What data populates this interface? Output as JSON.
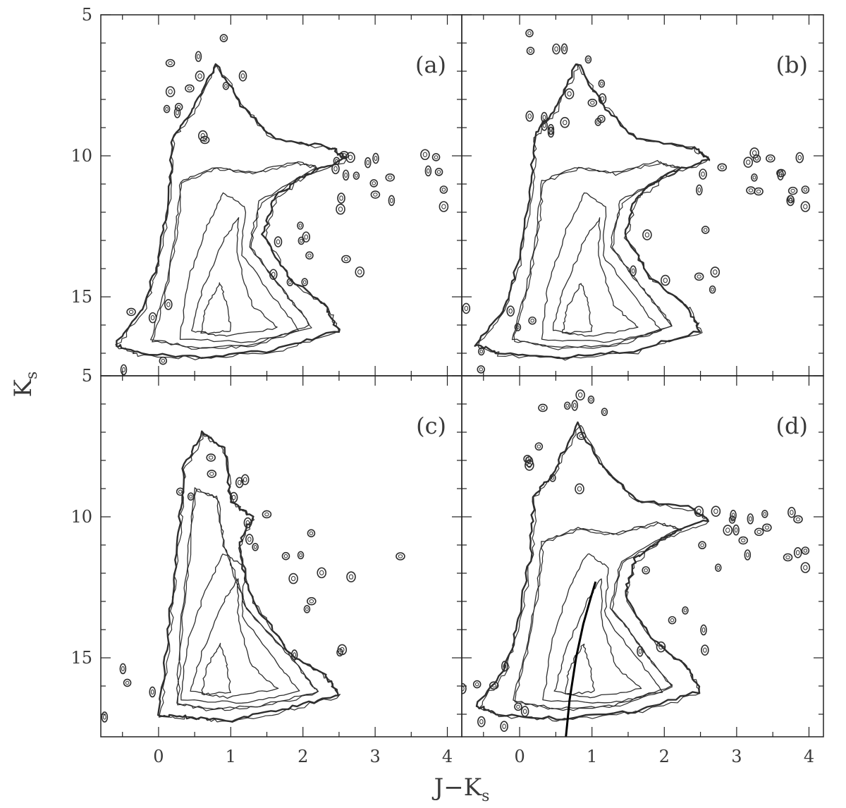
{
  "figure": {
    "xlabel_main": "J−K",
    "xlabel_sub": "s",
    "ylabel_main": "K",
    "ylabel_sub": "s"
  },
  "chart_data": [
    {
      "type": "contour",
      "panel_label": "(a)",
      "xlabel": "J−Ks",
      "ylabel": "Ks",
      "xlim": [
        -0.8,
        4.2
      ],
      "ylim": [
        17.8,
        5
      ],
      "y_inverted": true,
      "x_ticks": [
        0,
        1,
        2,
        3,
        4
      ],
      "y_ticks": [
        5,
        10,
        15
      ],
      "x_tick_labels_shown": false,
      "y_tick_labels": [
        "5",
        "10",
        "15"
      ],
      "features": {
        "density_peak": {
          "x": 0.75,
          "y": 16.0
        },
        "red_clump_branch": {
          "x_range": [
            0.2,
            2.6
          ],
          "y": 10.0
        },
        "giant_branch": [
          [
            0.75,
            16.3
          ],
          [
            0.9,
            14.2
          ],
          [
            1.05,
            12.3
          ],
          [
            1.2,
            11.0
          ]
        ],
        "faint_limit": 17.0
      }
    },
    {
      "type": "contour",
      "panel_label": "(b)",
      "xlabel": "J−Ks",
      "ylabel": "Ks",
      "xlim": [
        -0.8,
        4.2
      ],
      "ylim": [
        17.8,
        5
      ],
      "y_inverted": true,
      "x_ticks": [
        0,
        1,
        2,
        3,
        4
      ],
      "y_ticks": [
        5,
        10,
        15
      ],
      "x_tick_labels_shown": false,
      "y_tick_labels_shown": false,
      "features": {
        "density_peak": {
          "x": 0.75,
          "y": 16.0
        },
        "red_clump_branch": {
          "x_range": [
            0.2,
            2.6
          ],
          "y": 10.0
        },
        "giant_branch": [
          [
            0.75,
            16.3
          ],
          [
            0.9,
            14.2
          ],
          [
            1.05,
            12.3
          ],
          [
            1.2,
            11.0
          ]
        ],
        "faint_limit": 17.0
      }
    },
    {
      "type": "contour",
      "panel_label": "(c)",
      "xlabel": "J−Ks",
      "ylabel": "Ks",
      "xlim": [
        -0.8,
        4.2
      ],
      "ylim": [
        17.8,
        5
      ],
      "y_inverted": true,
      "x_ticks": [
        0,
        1,
        2,
        3,
        4
      ],
      "y_ticks": [
        5,
        10,
        15
      ],
      "x_tick_labels": [
        "0",
        "1",
        "2",
        "3",
        "4"
      ],
      "y_tick_labels": [
        "5",
        "10",
        "15"
      ],
      "features": {
        "density_peak": {
          "x": 0.75,
          "y": 15.9
        },
        "red_clump_branch": {
          "x_range": [
            0.1,
            1.3
          ],
          "y": 10.0
        },
        "giant_branch": [
          [
            0.7,
            16.3
          ],
          [
            0.85,
            14.0
          ],
          [
            0.95,
            12.0
          ],
          [
            1.0,
            10.5
          ]
        ],
        "faint_limit": 17.0
      }
    },
    {
      "type": "contour",
      "panel_label": "(d)",
      "xlabel": "J−Ks",
      "ylabel": "Ks",
      "xlim": [
        -0.8,
        4.2
      ],
      "ylim": [
        17.8,
        5
      ],
      "y_inverted": true,
      "x_ticks": [
        0,
        1,
        2,
        3,
        4
      ],
      "y_ticks": [
        5,
        10,
        15
      ],
      "x_tick_labels": [
        "0",
        "1",
        "2",
        "3",
        "4"
      ],
      "y_tick_labels_shown": false,
      "features": {
        "density_peak": {
          "x": 0.78,
          "y": 15.9
        },
        "red_clump_branch": {
          "x_range": [
            0.2,
            2.6
          ],
          "y": 10.0
        },
        "giant_branch": [
          [
            0.75,
            16.3
          ],
          [
            0.9,
            14.2
          ],
          [
            1.05,
            12.3
          ],
          [
            1.2,
            11.0
          ]
        ],
        "faint_limit": 17.0
      },
      "overlay_line": {
        "x": [
          0.64,
          0.69,
          0.78,
          0.88,
          0.98,
          1.05
        ],
        "y": [
          17.8,
          16.5,
          15.0,
          13.8,
          12.9,
          12.3
        ]
      }
    }
  ]
}
